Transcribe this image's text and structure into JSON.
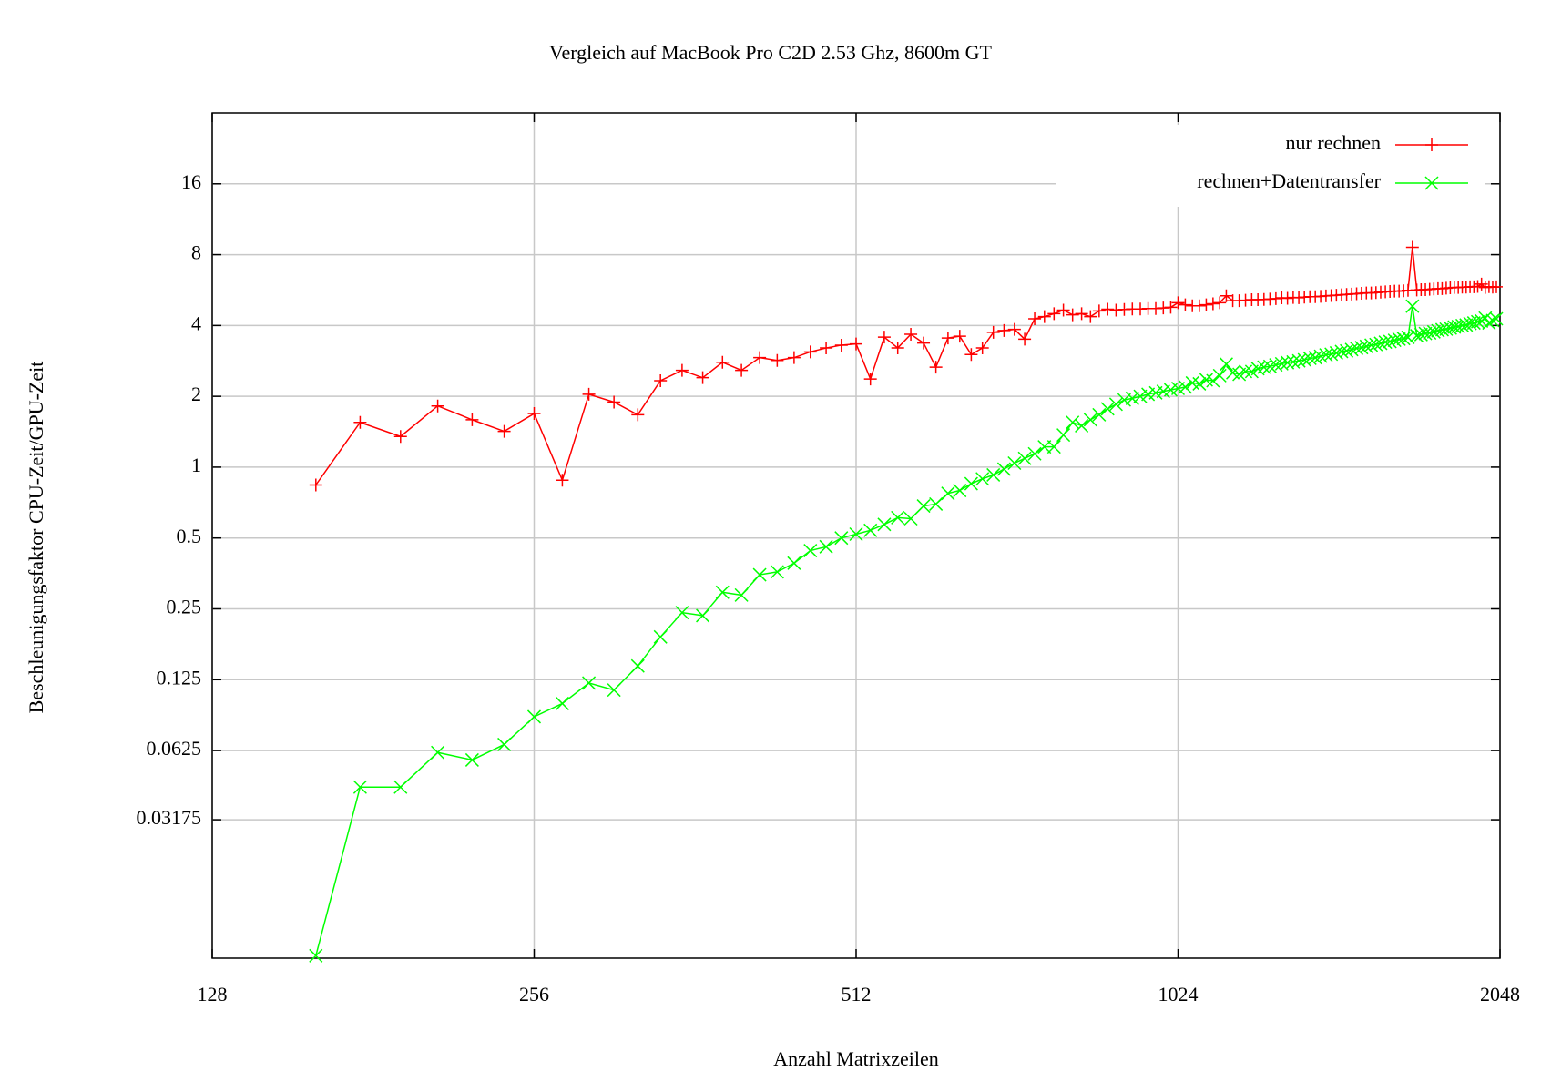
{
  "chart_data": {
    "type": "line",
    "title": "Vergleich auf MacBook Pro C2D 2.53 Ghz, 8600m GT",
    "xlabel": "Anzahl Matrixzeilen",
    "ylabel": "Beschleunigungsfaktor CPU-Zeit/GPU-Zeit",
    "xlog": true,
    "ylog": true,
    "grid": true,
    "legend": "top-right",
    "xlim": [
      128,
      2048
    ],
    "xticks": [
      128,
      256,
      512,
      1024,
      2048
    ],
    "ylim": [
      0.0082,
      32
    ],
    "yticks": [
      16,
      8,
      4,
      2,
      1,
      0.5,
      0.25,
      0.125,
      0.0625,
      0.03175
    ],
    "x": [
      160,
      176,
      192,
      208,
      224,
      240,
      256,
      272,
      288,
      304,
      320,
      336,
      352,
      368,
      384,
      400,
      416,
      432,
      448,
      464,
      480,
      496,
      512,
      528,
      544,
      560,
      576,
      592,
      608,
      624,
      640,
      656,
      672,
      688,
      704,
      720,
      736,
      752,
      768,
      784,
      800,
      816,
      832,
      848,
      864,
      880,
      896,
      912,
      928,
      944,
      960,
      976,
      992,
      1008,
      1024,
      1040,
      1056,
      1072,
      1088,
      1104,
      1120,
      1136,
      1152,
      1168,
      1184,
      1200,
      1216,
      1232,
      1248,
      1264,
      1280,
      1296,
      1312,
      1328,
      1344,
      1360,
      1376,
      1392,
      1408,
      1424,
      1440,
      1456,
      1472,
      1488,
      1504,
      1520,
      1536,
      1552,
      1568,
      1584,
      1600,
      1616,
      1632,
      1648,
      1664,
      1680,
      1696,
      1712,
      1728,
      1744,
      1760,
      1776,
      1792,
      1808,
      1824,
      1840,
      1856,
      1872,
      1888,
      1904,
      1920,
      1936,
      1952,
      1968,
      1984,
      2000,
      2016,
      2032
    ],
    "series": [
      {
        "name": "nur rechnen",
        "color": "#ff0000",
        "marker": "plus",
        "values": [
          0.84,
          1.55,
          1.35,
          1.82,
          1.59,
          1.42,
          1.69,
          0.88,
          2.04,
          1.89,
          1.67,
          2.33,
          2.58,
          2.4,
          2.79,
          2.58,
          2.92,
          2.84,
          2.92,
          3.09,
          3.21,
          3.3,
          3.34,
          2.37,
          3.57,
          3.21,
          3.67,
          3.37,
          2.66,
          3.54,
          3.6,
          3.01,
          3.21,
          3.74,
          3.81,
          3.85,
          3.5,
          4.27,
          4.36,
          4.49,
          4.65,
          4.44,
          4.49,
          4.36,
          4.61,
          4.69,
          4.65,
          4.68,
          4.7,
          4.7,
          4.72,
          4.72,
          4.75,
          4.78,
          5.0,
          4.9,
          4.85,
          4.85,
          4.9,
          4.95,
          5.0,
          5.35,
          5.1,
          5.1,
          5.12,
          5.15,
          5.15,
          5.16,
          5.18,
          5.2,
          5.24,
          5.22,
          5.26,
          5.25,
          5.28,
          5.3,
          5.3,
          5.32,
          5.34,
          5.36,
          5.38,
          5.4,
          5.42,
          5.44,
          5.46,
          5.48,
          5.5,
          5.5,
          5.52,
          5.54,
          5.56,
          5.58,
          5.6,
          5.6,
          5.62,
          5.64,
          8.6,
          5.66,
          5.68,
          5.68,
          5.7,
          5.72,
          5.74,
          5.74,
          5.76,
          5.78,
          5.8,
          5.8,
          5.82,
          5.82,
          5.84,
          5.84,
          5.86,
          6.0,
          5.8,
          5.85,
          5.82,
          5.84
        ]
      },
      {
        "name": "rechnen+Datentransfer",
        "color": "#00ff00",
        "marker": "cross",
        "values": [
          0.0084,
          0.0437,
          0.0437,
          0.0613,
          0.057,
          0.0663,
          0.087,
          0.099,
          0.121,
          0.113,
          0.143,
          0.19,
          0.241,
          0.234,
          0.294,
          0.286,
          0.349,
          0.359,
          0.391,
          0.442,
          0.459,
          0.5,
          0.519,
          0.539,
          0.571,
          0.61,
          0.604,
          0.684,
          0.697,
          0.774,
          0.796,
          0.851,
          0.892,
          0.927,
          0.981,
          1.04,
          1.09,
          1.14,
          1.22,
          1.22,
          1.37,
          1.55,
          1.5,
          1.59,
          1.67,
          1.77,
          1.85,
          1.93,
          1.96,
          2.0,
          2.04,
          2.07,
          2.1,
          2.13,
          2.16,
          2.19,
          2.28,
          2.26,
          2.35,
          2.33,
          2.45,
          2.74,
          2.52,
          2.48,
          2.55,
          2.55,
          2.62,
          2.66,
          2.68,
          2.72,
          2.75,
          2.78,
          2.8,
          2.83,
          2.86,
          2.9,
          2.92,
          2.96,
          3.0,
          3.02,
          3.06,
          3.1,
          3.12,
          3.16,
          3.2,
          3.22,
          3.26,
          3.3,
          3.32,
          3.36,
          3.4,
          3.42,
          3.46,
          3.5,
          3.52,
          3.56,
          4.83,
          3.62,
          3.66,
          3.7,
          3.72,
          3.76,
          3.8,
          3.84,
          3.86,
          3.9,
          3.94,
          3.96,
          4.0,
          4.02,
          4.08,
          4.1,
          4.15,
          4.18,
          4.3,
          4.1,
          4.2,
          4.27
        ]
      }
    ]
  }
}
